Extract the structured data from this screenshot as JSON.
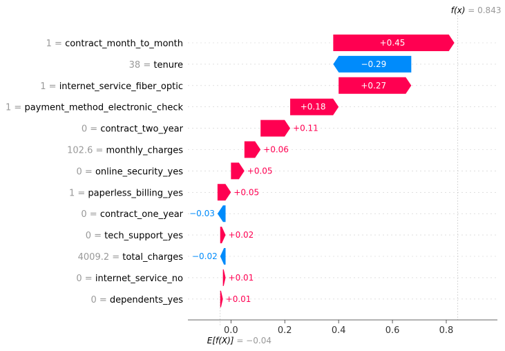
{
  "chart_data": {
    "type": "waterfall",
    "base_value": -0.04,
    "output_value": 0.843,
    "base_label_prefix": "E[f(X)]",
    "base_label_value": "−0.04",
    "output_label_prefix": "f(x)",
    "output_label_value": "0.843",
    "xlim": [
      -0.16,
      0.99
    ],
    "ticks": [
      0.0,
      0.2,
      0.4,
      0.6,
      0.8
    ],
    "tick_labels": [
      "0.0",
      "0.2",
      "0.4",
      "0.6",
      "0.8"
    ],
    "colors": {
      "positive": "#ff0051",
      "negative": "#008bfb",
      "value_text": "#999999"
    },
    "features": [
      {
        "value": "1",
        "name": "contract_month_to_month",
        "contribution": 0.45,
        "label": "+0.45"
      },
      {
        "value": "38",
        "name": "tenure",
        "contribution": -0.29,
        "label": "−0.29"
      },
      {
        "value": "1",
        "name": "internet_service_fiber_optic",
        "contribution": 0.27,
        "label": "+0.27"
      },
      {
        "value": "1",
        "name": "payment_method_electronic_check",
        "contribution": 0.18,
        "label": "+0.18"
      },
      {
        "value": "0",
        "name": "contract_two_year",
        "contribution": 0.11,
        "label": "+0.11"
      },
      {
        "value": "102.6",
        "name": "monthly_charges",
        "contribution": 0.06,
        "label": "+0.06"
      },
      {
        "value": "0",
        "name": "online_security_yes",
        "contribution": 0.05,
        "label": "+0.05"
      },
      {
        "value": "1",
        "name": "paperless_billing_yes",
        "contribution": 0.05,
        "label": "+0.05"
      },
      {
        "value": "0",
        "name": "contract_one_year",
        "contribution": -0.03,
        "label": "−0.03"
      },
      {
        "value": "0",
        "name": "tech_support_yes",
        "contribution": 0.02,
        "label": "+0.02"
      },
      {
        "value": "4009.2",
        "name": "total_charges",
        "contribution": -0.02,
        "label": "−0.02"
      },
      {
        "value": "0",
        "name": "internet_service_no",
        "contribution": 0.01,
        "label": "+0.01"
      },
      {
        "value": "0",
        "name": "dependents_yes",
        "contribution": 0.01,
        "label": "+0.01"
      }
    ]
  }
}
